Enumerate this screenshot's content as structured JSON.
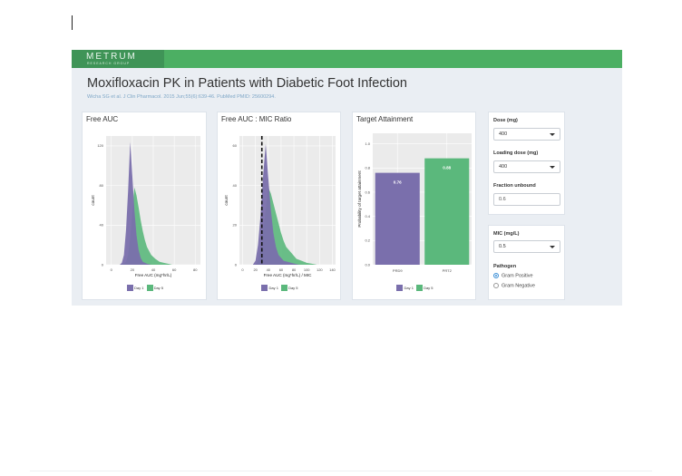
{
  "header": {
    "logo_main": "METRUM",
    "logo_sub": "RESEARCH GROUP",
    "title": "Moxifloxacin PK in Patients with Diabetic Foot Infection",
    "citation": "Wicha SG et al. J Clin Pharmacol. 2015 Jun;55(6):639-46. PubMed PMID: 25600294."
  },
  "colors": {
    "day1": "#7a6fac",
    "day5": "#5bb87c",
    "navbar": "#4caf63",
    "panel": "#ebebeb"
  },
  "legend": {
    "day1": "Day 1",
    "day5": "Day 5"
  },
  "panels": {
    "free_auc": {
      "title": "Free AUC",
      "xlabel": "Free AUC (mg*hr/L)",
      "ylabel": "count",
      "xticks": [
        "0",
        "20",
        "40",
        "60",
        "80"
      ],
      "yticks": [
        "0",
        "40",
        "80",
        "120"
      ]
    },
    "auc_mic": {
      "title": "Free AUC : MIC Ratio",
      "xlabel": "Free AUC (mg*hr/L) / MIC",
      "ylabel": "count",
      "xticks": [
        "0",
        "20",
        "40",
        "60",
        "80",
        "100",
        "120",
        "140"
      ],
      "yticks": [
        "0",
        "20",
        "40",
        "60"
      ],
      "threshold": 30
    },
    "target": {
      "title": "Target Attainment",
      "ylabel": "Probability of target attainment",
      "yticks": [
        "0.0",
        "0.2",
        "0.4",
        "0.6",
        "0.8",
        "1.0"
      ]
    }
  },
  "chart_data": [
    {
      "type": "area",
      "title": "Free AUC",
      "xlabel": "Free AUC (mg*hr/L)",
      "ylabel": "count",
      "xlim": [
        -5,
        85
      ],
      "ylim": [
        0,
        130
      ],
      "series": [
        {
          "name": "Day 1",
          "x": [
            8,
            10,
            12,
            14,
            16,
            18,
            20,
            22,
            24,
            26,
            28,
            30,
            34,
            38,
            44
          ],
          "values": [
            0,
            2,
            10,
            35,
            75,
            124,
            90,
            55,
            30,
            15,
            7,
            3,
            1,
            0,
            0
          ]
        },
        {
          "name": "Day 5",
          "x": [
            10,
            14,
            16,
            18,
            20,
            22,
            24,
            26,
            28,
            30,
            32,
            34,
            38,
            42,
            46,
            50,
            54,
            58
          ],
          "values": [
            0,
            3,
            10,
            28,
            55,
            78,
            70,
            58,
            45,
            34,
            25,
            18,
            10,
            6,
            3,
            2,
            1,
            0
          ]
        }
      ]
    },
    {
      "type": "area",
      "title": "Free AUC : MIC Ratio",
      "xlabel": "Free AUC (mg*hr/L) / MIC",
      "ylabel": "count",
      "xlim": [
        -5,
        145
      ],
      "ylim": [
        0,
        65
      ],
      "threshold": 30,
      "series": [
        {
          "name": "Day 1",
          "x": [
            16,
            20,
            24,
            28,
            32,
            36,
            40,
            44,
            48,
            52,
            56,
            64,
            76,
            88
          ],
          "values": [
            0,
            2,
            10,
            25,
            45,
            61,
            44,
            28,
            16,
            9,
            5,
            2,
            1,
            0
          ]
        },
        {
          "name": "Day 5",
          "x": [
            20,
            24,
            28,
            32,
            36,
            40,
            44,
            48,
            52,
            56,
            60,
            64,
            68,
            76,
            84,
            92,
            100,
            108,
            116
          ],
          "values": [
            0,
            2,
            8,
            17,
            28,
            39,
            36,
            31,
            26,
            21,
            16,
            12,
            9,
            6,
            3,
            2,
            1,
            0.5,
            0
          ]
        }
      ]
    },
    {
      "type": "bar",
      "title": "Target Attainment",
      "ylabel": "Probability of target attainment",
      "ylim": [
        0,
        1.0
      ],
      "categories": [
        "PRD9",
        "PRT2"
      ],
      "values": [
        0.76,
        0.88
      ],
      "labels": [
        "0.76",
        "0.88"
      ],
      "legend": [
        "Day 1",
        "Day 5"
      ]
    }
  ],
  "sidebar": {
    "dose_label": "Dose (mg)",
    "dose_value": "400",
    "loading_label": "Loading dose (mg)",
    "loading_value": "400",
    "fu_label": "Fraction unbound",
    "fu_value": "0.6",
    "mic_label": "MIC (mg/L)",
    "mic_value": "0.5",
    "pathogen_label": "Pathogen",
    "pathogen_options": [
      "Gram Positive",
      "Gram Negative"
    ],
    "pathogen_selected": "Gram Positive"
  }
}
